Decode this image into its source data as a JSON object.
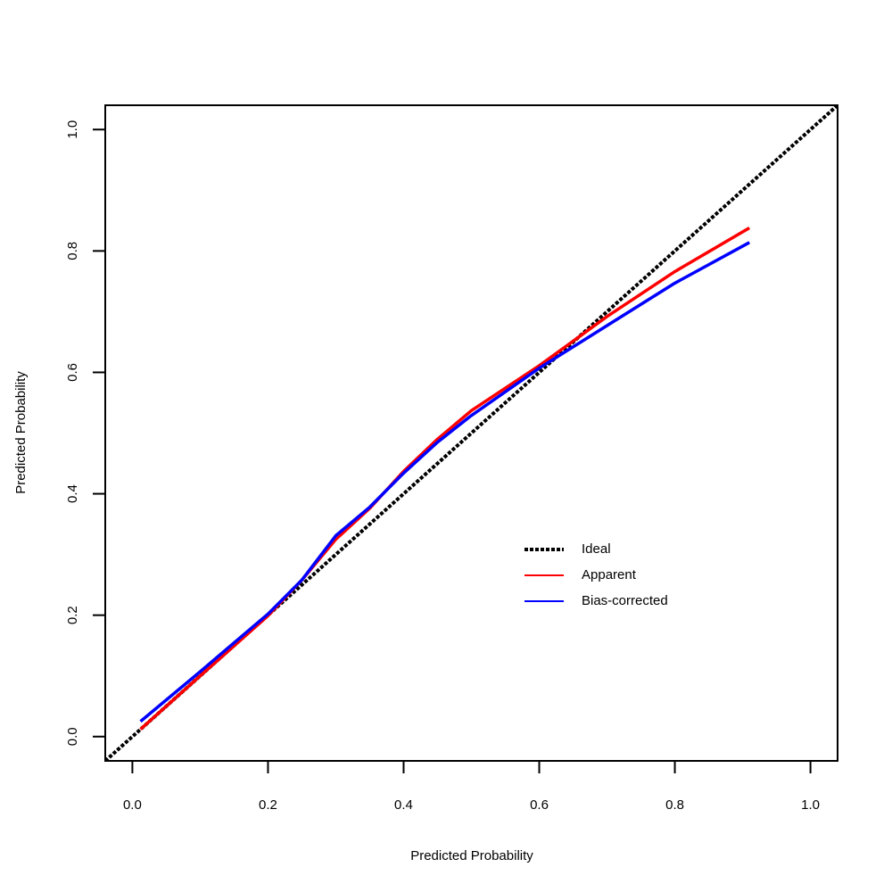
{
  "chart_data": {
    "type": "line",
    "x_label": "Predicted Probability",
    "y_label": "Predicted Probability",
    "xlim": [
      -0.04,
      1.04
    ],
    "ylim": [
      -0.04,
      1.04
    ],
    "xticks": [
      {
        "value": 0,
        "label": "0.0"
      },
      0.2,
      0.4,
      0.6,
      0.8,
      {
        "value": 1,
        "label": "1.0"
      }
    ],
    "yticks": [
      {
        "value": 0,
        "label": "0.0"
      },
      0.2,
      0.4,
      0.6,
      0.8,
      {
        "value": 1,
        "label": "1.0"
      }
    ],
    "grid": false,
    "legend_position": "right",
    "series": [
      {
        "name": "Ideal",
        "color": "#000000",
        "dashed": true,
        "x": [
          -0.04,
          1.04
        ],
        "values": [
          -0.04,
          1.04
        ]
      },
      {
        "name": "Apparent",
        "color": "#ff0000",
        "dashed": false,
        "x": [
          0.012,
          0.1,
          0.2,
          0.25,
          0.3,
          0.35,
          0.4,
          0.45,
          0.5,
          0.6,
          0.7,
          0.8,
          0.91
        ],
        "values": [
          0.012,
          0.1,
          0.199,
          0.258,
          0.325,
          0.376,
          0.437,
          0.49,
          0.537,
          0.611,
          0.692,
          0.766,
          0.838
        ]
      },
      {
        "name": "Bias-corrected",
        "color": "#0000ff",
        "dashed": false,
        "x": [
          0.012,
          0.1,
          0.2,
          0.25,
          0.3,
          0.35,
          0.4,
          0.45,
          0.5,
          0.6,
          0.7,
          0.8,
          0.91
        ],
        "values": [
          0.025,
          0.107,
          0.202,
          0.258,
          0.331,
          0.378,
          0.434,
          0.485,
          0.529,
          0.607,
          0.677,
          0.747,
          0.814
        ]
      }
    ]
  }
}
